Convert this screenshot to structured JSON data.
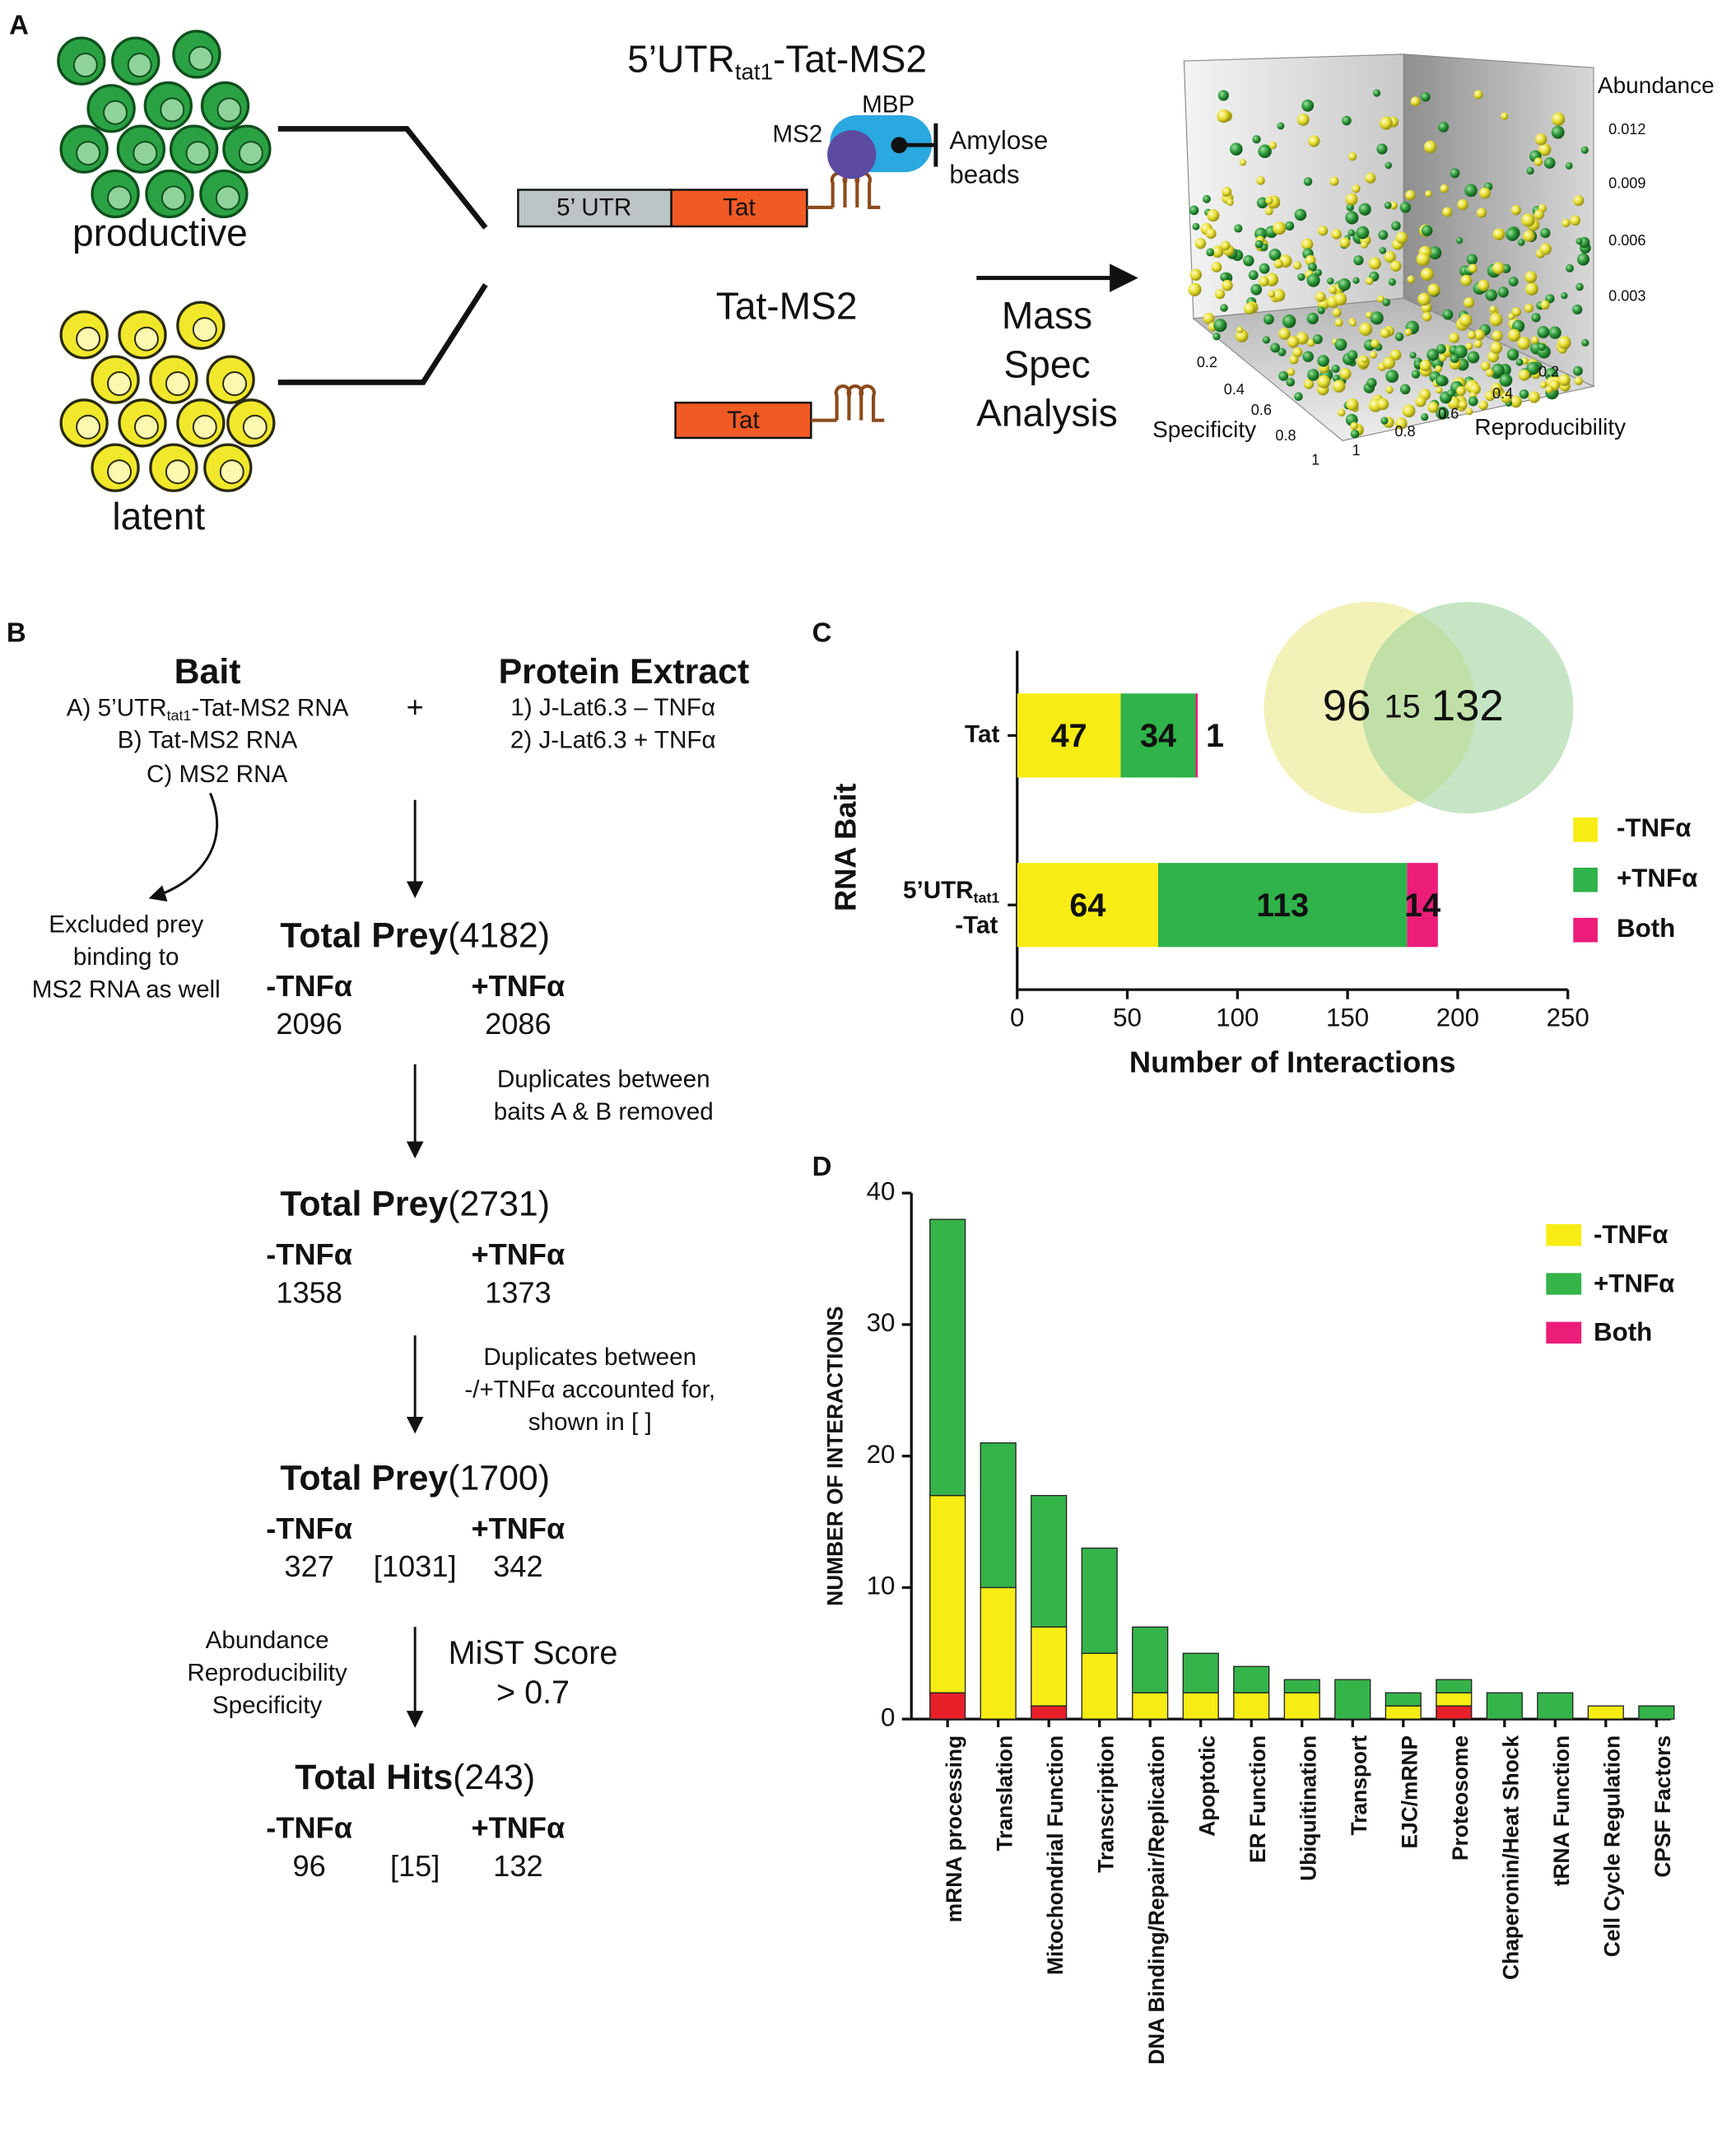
{
  "panel_labels": [
    "A",
    "B",
    "C",
    "D"
  ],
  "panel_a": {
    "cell_groups": [
      "productive",
      "latent"
    ],
    "construct_1": {
      "title": [
        "5’UTR",
        "tat1",
        "-Tat-MS2"
      ],
      "mbp": "MBP",
      "ms2": "MS2",
      "beads": [
        "Amylose",
        "beads"
      ],
      "utr_box": "5’ UTR",
      "tat_box": "Tat"
    },
    "construct_2": {
      "title": "Tat-MS2",
      "tat_box": "Tat"
    },
    "analysis": [
      "Mass",
      "Spec",
      "Analysis"
    ],
    "plot_3d": {
      "z_label": "Abundance",
      "x_label": "Specificity",
      "y_label": "Reproducibility",
      "z_ticks": [
        "0.012",
        "0.009",
        "0.006",
        "0.003"
      ],
      "x_ticks": [
        "0.2",
        "0.4",
        "0.6",
        "0.8",
        "1"
      ],
      "y_ticks": [
        "0.2",
        "0.4",
        "0.6",
        "0.8",
        "1"
      ]
    }
  },
  "panel_b": {
    "bait": {
      "title": "Bait",
      "item_a": [
        "A) 5’UTR",
        "tat1",
        "-Tat-MS2 RNA"
      ],
      "item_b": "B) Tat-MS2 RNA",
      "item_c": "C) MS2 RNA"
    },
    "plus": "+",
    "extract": {
      "title": "Protein Extract",
      "items": [
        "1) J-Lat6.3 – TNFα",
        "2) J-Lat6.3 + TNFα"
      ]
    },
    "excluded": [
      "Excluded prey",
      "binding to",
      "MS2 RNA as well"
    ],
    "stages": [
      {
        "title": "Total Prey",
        "count": "(4182)",
        "minus_label": "-TNFα",
        "plus_label": "+TNFα",
        "minus": "2096",
        "plus": "2086"
      },
      {
        "title": "Total Prey",
        "count": "(2731)",
        "minus_label": "-TNFα",
        "plus_label": "+TNFα",
        "minus": "1358",
        "plus": "1373"
      },
      {
        "title": "Total Prey",
        "count": "(1700)",
        "minus_label": "-TNFα",
        "plus_label": "+TNFα",
        "minus": "327",
        "shared": "[1031]",
        "plus": "342"
      },
      {
        "title": "Total Hits",
        "count": "(243)",
        "minus_label": "-TNFα",
        "plus_label": "+TNFα",
        "minus": "96",
        "shared": "[15]",
        "plus": "132"
      }
    ],
    "notes": [
      [
        "Duplicates between",
        "baits A & B removed"
      ],
      [
        "Duplicates between",
        "-/+TNFα accounted for,",
        "shown in [ ]"
      ]
    ],
    "criteria": [
      "Abundance",
      "Reproducibility",
      "Specificity"
    ],
    "mist": [
      "MiST Score",
      "> 0.7"
    ]
  },
  "chart_data": [
    {
      "type": "bar",
      "orientation": "horizontal",
      "stacked": true,
      "categories": [
        [
          "Tat"
        ],
        [
          "5’UTR",
          "tat1",
          "-Tat"
        ]
      ],
      "series": [
        {
          "name": "-TNFα",
          "color": "#f7ec13",
          "values": [
            47,
            64
          ]
        },
        {
          "name": "+TNFα",
          "color": "#2fb34a",
          "values": [
            34,
            113
          ]
        },
        {
          "name": "Both",
          "color": "#ec1c79",
          "values": [
            1,
            14
          ]
        }
      ],
      "xlim": [
        0,
        250
      ],
      "xticks": [
        0,
        50,
        100,
        150,
        200,
        250
      ],
      "xlabel": "Number of Interactions",
      "ylabel": "RNA Bait",
      "venn": {
        "left": "96",
        "overlap": "15",
        "right": "132"
      }
    },
    {
      "type": "bar",
      "orientation": "vertical",
      "stacked": true,
      "categories": [
        "mRNA processing",
        "Translation",
        "Mitochondrial Function",
        "Transcription",
        "DNA Binding/Repair/Replication",
        "Apoptotic",
        "ER Function",
        "Ubiquitination",
        "Transport",
        "EJC/mRNP",
        "Proteosome",
        "Chaperonin/Heat Shock",
        "tRNA Function",
        "Cell Cycle Regulation",
        "CPSF Factors"
      ],
      "series": [
        {
          "name": "-TNFα",
          "color": "#f7ec13",
          "values": [
            15,
            10,
            6,
            5,
            2,
            2,
            2,
            2,
            0,
            1,
            1,
            0,
            0,
            1,
            0
          ]
        },
        {
          "name": "+TNFα",
          "color": "#35b44a",
          "values": [
            21,
            11,
            10,
            8,
            5,
            3,
            2,
            1,
            3,
            1,
            1,
            2,
            2,
            0,
            1
          ]
        },
        {
          "name": "Both",
          "color": "#e8202a",
          "legend_color": "#ec1c79",
          "values": [
            2,
            0,
            1,
            0,
            0,
            0,
            0,
            0,
            0,
            0,
            1,
            0,
            0,
            0,
            0
          ]
        }
      ],
      "ylim": [
        0,
        40
      ],
      "yticks": [
        0,
        10,
        20,
        30,
        40
      ],
      "ylabel": "NUMBER OF INTERACTIONS"
    }
  ]
}
